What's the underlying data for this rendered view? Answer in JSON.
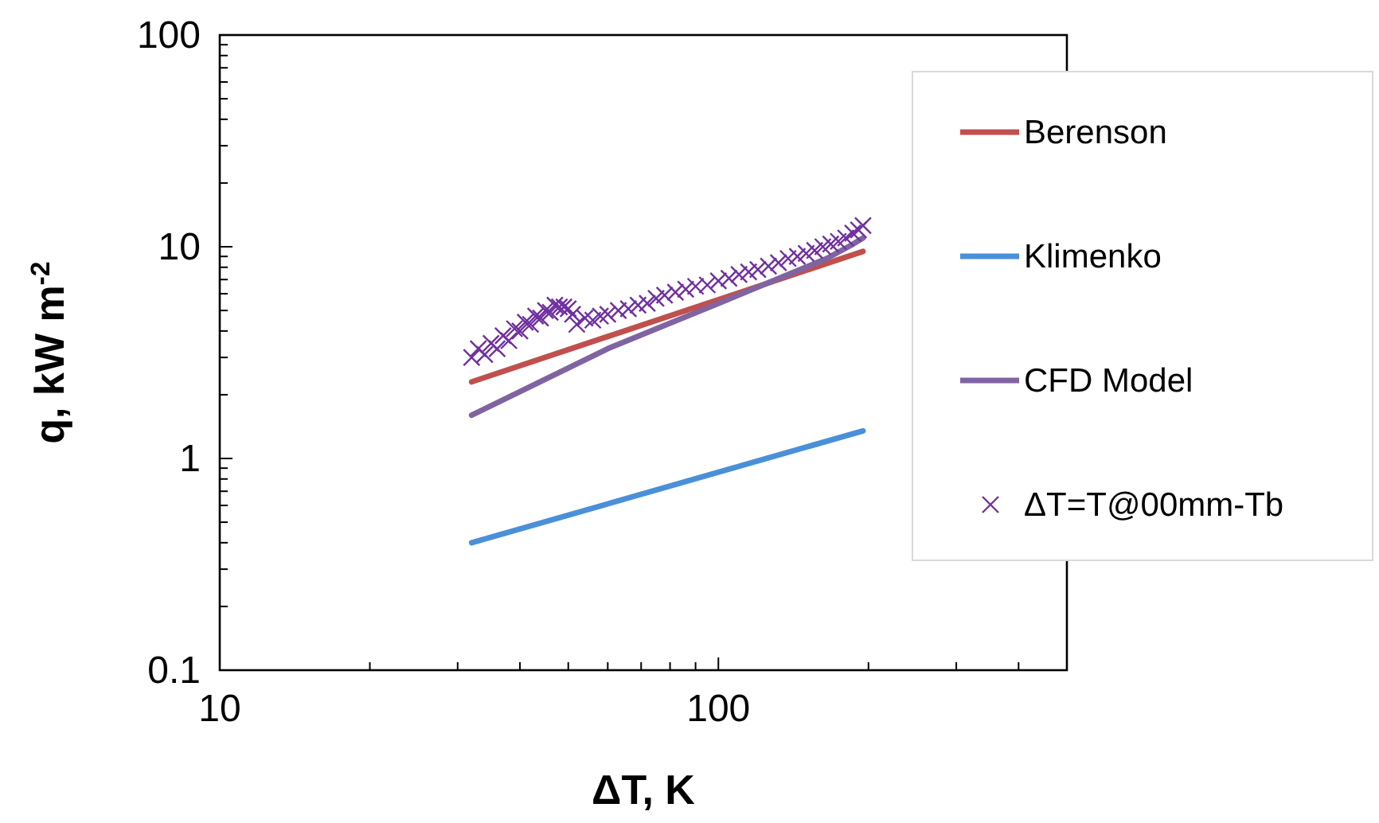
{
  "chart_data": {
    "type": "line",
    "xlabel": "ΔT, K",
    "ylabel": "q, kW m$^{-2}$",
    "log": "xy",
    "xlim": [
      10,
      500
    ],
    "ylim": [
      0.1,
      100
    ],
    "xticks": [
      10,
      {
        "value": 20,
        "label": null
      },
      {
        "value": 30,
        "label": null
      },
      {
        "value": 40,
        "label": null
      },
      {
        "value": 50,
        "label": null
      },
      {
        "value": 60,
        "label": null
      },
      {
        "value": 70,
        "label": null
      },
      {
        "value": 80,
        "label": null
      },
      {
        "value": 90,
        "label": null
      },
      100,
      {
        "value": 200,
        "label": null
      },
      {
        "value": 300,
        "label": null
      },
      {
        "value": 400,
        "label": null
      },
      {
        "value": 500,
        "label": null
      }
    ],
    "yticks": [
      0.1,
      {
        "value": 0.2,
        "label": null
      },
      {
        "value": 0.3,
        "label": null
      },
      {
        "value": 0.4,
        "label": null
      },
      {
        "value": 0.5,
        "label": null
      },
      {
        "value": 0.6,
        "label": null
      },
      {
        "value": 0.7,
        "label": null
      },
      {
        "value": 0.8,
        "label": null
      },
      {
        "value": 0.9,
        "label": null
      },
      1,
      {
        "value": 2,
        "label": null
      },
      {
        "value": 3,
        "label": null
      },
      {
        "value": 4,
        "label": null
      },
      {
        "value": 5,
        "label": null
      },
      {
        "value": 6,
        "label": null
      },
      {
        "value": 7,
        "label": null
      },
      {
        "value": 8,
        "label": null
      },
      {
        "value": 9,
        "label": null
      },
      10,
      {
        "value": 20,
        "label": null
      },
      {
        "value": 30,
        "label": null
      },
      {
        "value": 40,
        "label": null
      },
      {
        "value": 50,
        "label": null
      },
      {
        "value": 60,
        "label": null
      },
      {
        "value": 70,
        "label": null
      },
      {
        "value": 80,
        "label": null
      },
      {
        "value": 90,
        "label": null
      },
      100
    ],
    "grid": false,
    "legend": "right",
    "series": [
      {
        "name": "Berenson",
        "color": "#c0504d",
        "x": [
          32,
          195
        ],
        "values": [
          2.3,
          9.5
        ]
      },
      {
        "name": "Klimenko",
        "color": "#4a90d9",
        "x": [
          32,
          195
        ],
        "values": [
          0.4,
          1.35
        ]
      },
      {
        "name": "CFD Model",
        "color": "#8064a2",
        "x": [
          32,
          60,
          100,
          140,
          165,
          185,
          195
        ],
        "values": [
          1.6,
          3.3,
          5.4,
          7.5,
          8.8,
          10.2,
          11
        ]
      },
      {
        "name": "ΔT=T@00mm-Tb",
        "type": "scatter",
        "marker": "cross",
        "color": "#7030a0",
        "x": [
          32,
          33,
          34,
          35,
          36,
          37,
          38,
          39,
          40,
          41,
          42,
          43,
          44,
          45,
          46,
          47,
          48,
          49,
          50,
          51,
          52,
          54,
          56,
          58,
          60,
          63,
          66,
          69,
          72,
          75,
          78,
          82,
          86,
          90,
          95,
          100,
          105,
          110,
          115,
          120,
          126,
          132,
          138,
          144,
          150,
          156,
          162,
          168,
          174,
          180,
          186,
          191,
          195
        ],
        "values": [
          3.0,
          3.3,
          3.1,
          3.5,
          3.3,
          3.8,
          3.6,
          4.1,
          4.0,
          4.4,
          4.3,
          4.7,
          4.6,
          5.0,
          4.9,
          5.3,
          5.2,
          5.2,
          5.1,
          4.8,
          4.3,
          4.6,
          4.5,
          4.7,
          4.8,
          5.0,
          5.1,
          5.3,
          5.4,
          5.7,
          5.9,
          6.1,
          6.3,
          6.5,
          6.6,
          6.9,
          7.1,
          7.4,
          7.6,
          7.8,
          8.1,
          8.4,
          8.8,
          9.0,
          9.3,
          9.6,
          10.0,
          10.3,
          10.6,
          11.0,
          11.6,
          12.0,
          12.6
        ]
      }
    ]
  }
}
